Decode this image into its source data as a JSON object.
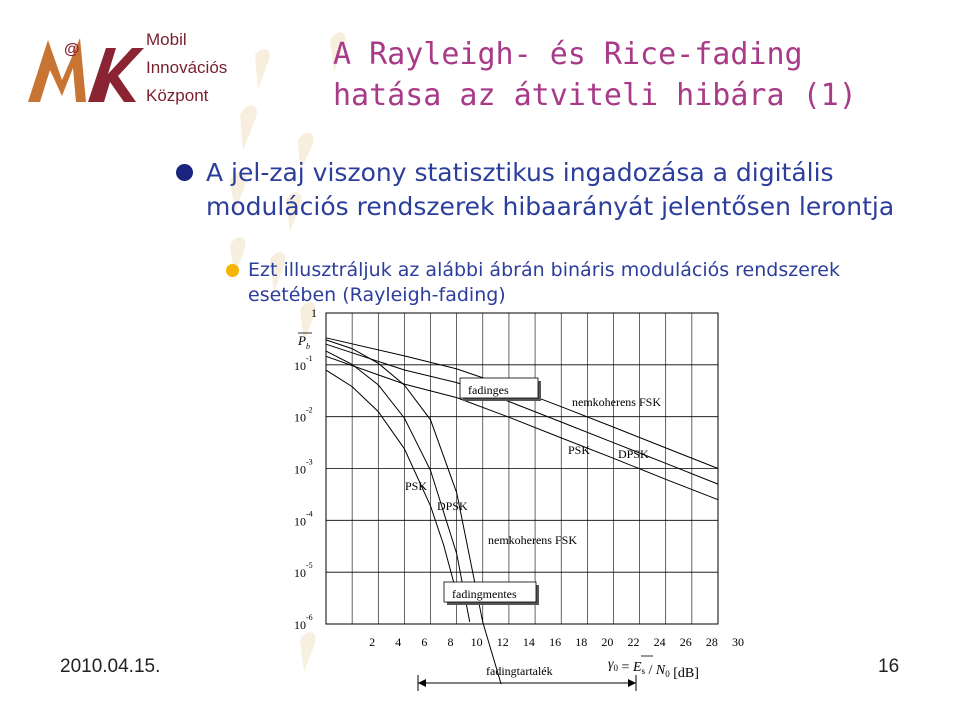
{
  "slide": {
    "logo": {
      "line1": "Mobil",
      "line2": "Innovációs",
      "line3": "Központ",
      "mark": "@"
    },
    "title_line1": "A Rayleigh- és Rice-fading",
    "title_line2": "hatása az átviteli hibára (1)",
    "bullet1": "A jel-zaj viszony statisztikus ingadozása a digitális modulációs rendszerek hibaarányát jelentősen lerontja",
    "bullet2": "Ezt illusztráljuk az alábbi ábrán bináris modulációs rendszerek esetében (Rayleigh-fading)",
    "date": "2010.04.15.",
    "page_number": "16"
  },
  "colors": {
    "title": "#a83a88",
    "bullet_text": "#2c3e9c",
    "bullet1_dot": "#1a237e",
    "bullet2_dot": "#f4b400",
    "logo": "#b5651d"
  },
  "chart_data": {
    "type": "line",
    "y_scale": "log",
    "ylim": [
      1e-06,
      1
    ],
    "xlim": [
      0,
      30
    ],
    "y_tick_labels": [
      "1",
      "10-1",
      "10-2",
      "10-3",
      "10-4",
      "10-5",
      "10-6"
    ],
    "x_tick_labels": [
      "2",
      "4",
      "6",
      "8",
      "10",
      "12",
      "14",
      "16",
      "18",
      "20",
      "22",
      "24",
      "26",
      "28",
      "30"
    ],
    "ylabel": "Pb",
    "xlabel": "γ0 = Es / N0 [dB]",
    "grid": true,
    "annotations": {
      "fading_box": "fadinges",
      "nonfading_box": "fadingmentes",
      "margin_label": "fadingtartalék",
      "nc_fsk_fading": "nemkoherens FSK",
      "psk_fading": "PSK",
      "dpsk_fading": "DPSK",
      "psk_awgn": "PSK",
      "dpsk_awgn": "DPSK",
      "nc_fsk_awgn": "nemkoherens FSK"
    },
    "series": [
      {
        "name": "PSK",
        "group": "fadingmentes",
        "x": [
          0,
          2,
          4,
          6,
          8,
          9,
          10
        ],
        "y": [
          0.079,
          0.038,
          0.0125,
          0.0024,
          0.00019,
          3.36e-05,
          3.9e-06
        ]
      },
      {
        "name": "DPSK",
        "group": "fadingmentes",
        "x": [
          0,
          2,
          4,
          6,
          8,
          10,
          11
        ],
        "y": [
          0.184,
          0.102,
          0.041,
          0.0094,
          0.00092,
          2.27e-05,
          1.1e-06
        ]
      },
      {
        "name": "nemkoherens FSK",
        "group": "fadingmentes",
        "x": [
          0,
          2,
          4,
          6,
          8,
          10,
          12,
          13.4
        ],
        "y": [
          0.303,
          0.206,
          0.107,
          0.0407,
          0.0087,
          0.00034,
          1.08e-06,
          0.0
        ]
      },
      {
        "name": "PSK",
        "group": "fadinges",
        "x": [
          0,
          6,
          10,
          14,
          18,
          22,
          26,
          30
        ],
        "y": [
          0.146,
          0.0425,
          0.0233,
          0.00977,
          0.0039,
          0.00157,
          0.00062,
          0.00025
        ]
      },
      {
        "name": "DPSK",
        "group": "fadinges",
        "x": [
          0,
          6,
          10,
          14,
          18,
          22,
          26,
          30
        ],
        "y": [
          0.25,
          0.0795,
          0.0455,
          0.0196,
          0.0079,
          0.00315,
          0.00126,
          0.0005
        ]
      },
      {
        "name": "nemkoherens FSK",
        "group": "fadinges",
        "x": [
          0,
          6,
          10,
          14,
          18,
          22,
          26,
          30
        ],
        "y": [
          0.333,
          0.1487,
          0.0833,
          0.0378,
          0.0156,
          0.0063,
          0.0025,
          0.001
        ]
      }
    ]
  }
}
